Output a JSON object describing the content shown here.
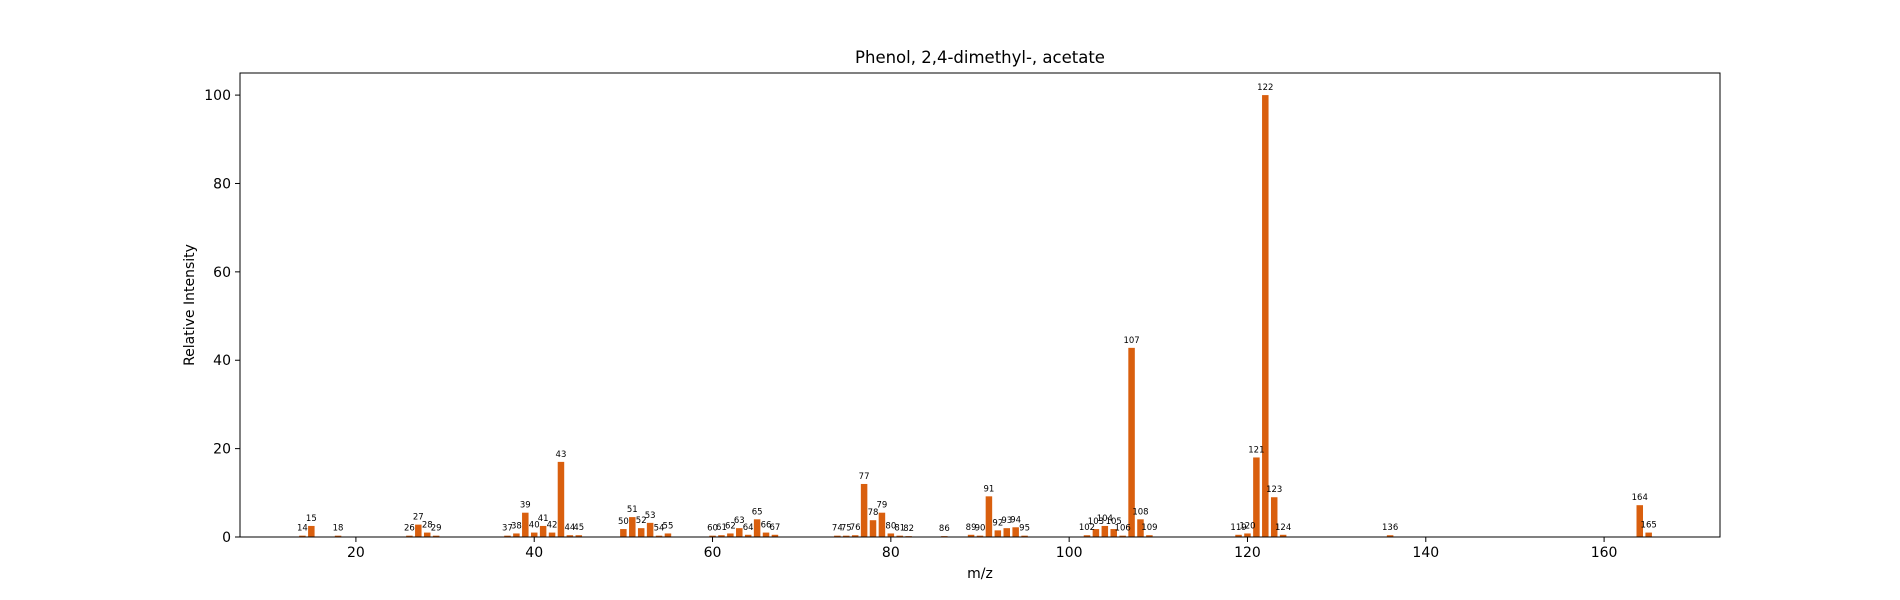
{
  "chart_data": {
    "type": "bar",
    "title": "Phenol, 2,4-dimethyl-, acetate",
    "xlabel": "m/z",
    "ylabel": "Relative Intensity",
    "xlim": [
      7,
      173
    ],
    "ylim": [
      0,
      105
    ],
    "xticks": [
      20,
      40,
      60,
      80,
      100,
      120,
      140,
      160
    ],
    "yticks": [
      0,
      20,
      40,
      60,
      80,
      100
    ],
    "grid": false,
    "bar_color": "#d95f0e",
    "peaks": [
      {
        "x": 14,
        "y": 0.3
      },
      {
        "x": 15,
        "y": 2.5
      },
      {
        "x": 18,
        "y": 0.3
      },
      {
        "x": 26,
        "y": 0.3
      },
      {
        "x": 27,
        "y": 2.8
      },
      {
        "x": 28,
        "y": 1.0
      },
      {
        "x": 29,
        "y": 0.3
      },
      {
        "x": 37,
        "y": 0.3
      },
      {
        "x": 38,
        "y": 0.8
      },
      {
        "x": 39,
        "y": 5.5
      },
      {
        "x": 40,
        "y": 1.0
      },
      {
        "x": 41,
        "y": 2.5
      },
      {
        "x": 42,
        "y": 1.0
      },
      {
        "x": 43,
        "y": 17.0
      },
      {
        "x": 44,
        "y": 0.4
      },
      {
        "x": 45,
        "y": 0.4
      },
      {
        "x": 50,
        "y": 1.8
      },
      {
        "x": 51,
        "y": 4.5
      },
      {
        "x": 52,
        "y": 2.0
      },
      {
        "x": 53,
        "y": 3.2
      },
      {
        "x": 54,
        "y": 0.3
      },
      {
        "x": 55,
        "y": 0.8
      },
      {
        "x": 60,
        "y": 0.3
      },
      {
        "x": 61,
        "y": 0.4
      },
      {
        "x": 62,
        "y": 0.8
      },
      {
        "x": 63,
        "y": 2.0
      },
      {
        "x": 64,
        "y": 0.5
      },
      {
        "x": 65,
        "y": 4.0
      },
      {
        "x": 66,
        "y": 1.0
      },
      {
        "x": 67,
        "y": 0.5
      },
      {
        "x": 74,
        "y": 0.3
      },
      {
        "x": 75,
        "y": 0.3
      },
      {
        "x": 76,
        "y": 0.4
      },
      {
        "x": 77,
        "y": 12.0
      },
      {
        "x": 78,
        "y": 3.8
      },
      {
        "x": 79,
        "y": 5.5
      },
      {
        "x": 80,
        "y": 0.8
      },
      {
        "x": 81,
        "y": 0.3
      },
      {
        "x": 82,
        "y": 0.2
      },
      {
        "x": 86,
        "y": 0.2
      },
      {
        "x": 89,
        "y": 0.5
      },
      {
        "x": 90,
        "y": 0.3
      },
      {
        "x": 91,
        "y": 9.2
      },
      {
        "x": 92,
        "y": 1.5
      },
      {
        "x": 93,
        "y": 2.0
      },
      {
        "x": 94,
        "y": 2.2
      },
      {
        "x": 95,
        "y": 0.3
      },
      {
        "x": 102,
        "y": 0.4
      },
      {
        "x": 103,
        "y": 1.8
      },
      {
        "x": 104,
        "y": 2.5
      },
      {
        "x": 105,
        "y": 1.8
      },
      {
        "x": 106,
        "y": 0.3
      },
      {
        "x": 107,
        "y": 42.8
      },
      {
        "x": 108,
        "y": 4.0
      },
      {
        "x": 109,
        "y": 0.4
      },
      {
        "x": 119,
        "y": 0.5
      },
      {
        "x": 120,
        "y": 0.8
      },
      {
        "x": 121,
        "y": 18.0
      },
      {
        "x": 122,
        "y": 100.0
      },
      {
        "x": 123,
        "y": 9.0
      },
      {
        "x": 124,
        "y": 0.5
      },
      {
        "x": 136,
        "y": 0.4
      },
      {
        "x": 164,
        "y": 7.2
      },
      {
        "x": 165,
        "y": 1.0
      }
    ]
  }
}
